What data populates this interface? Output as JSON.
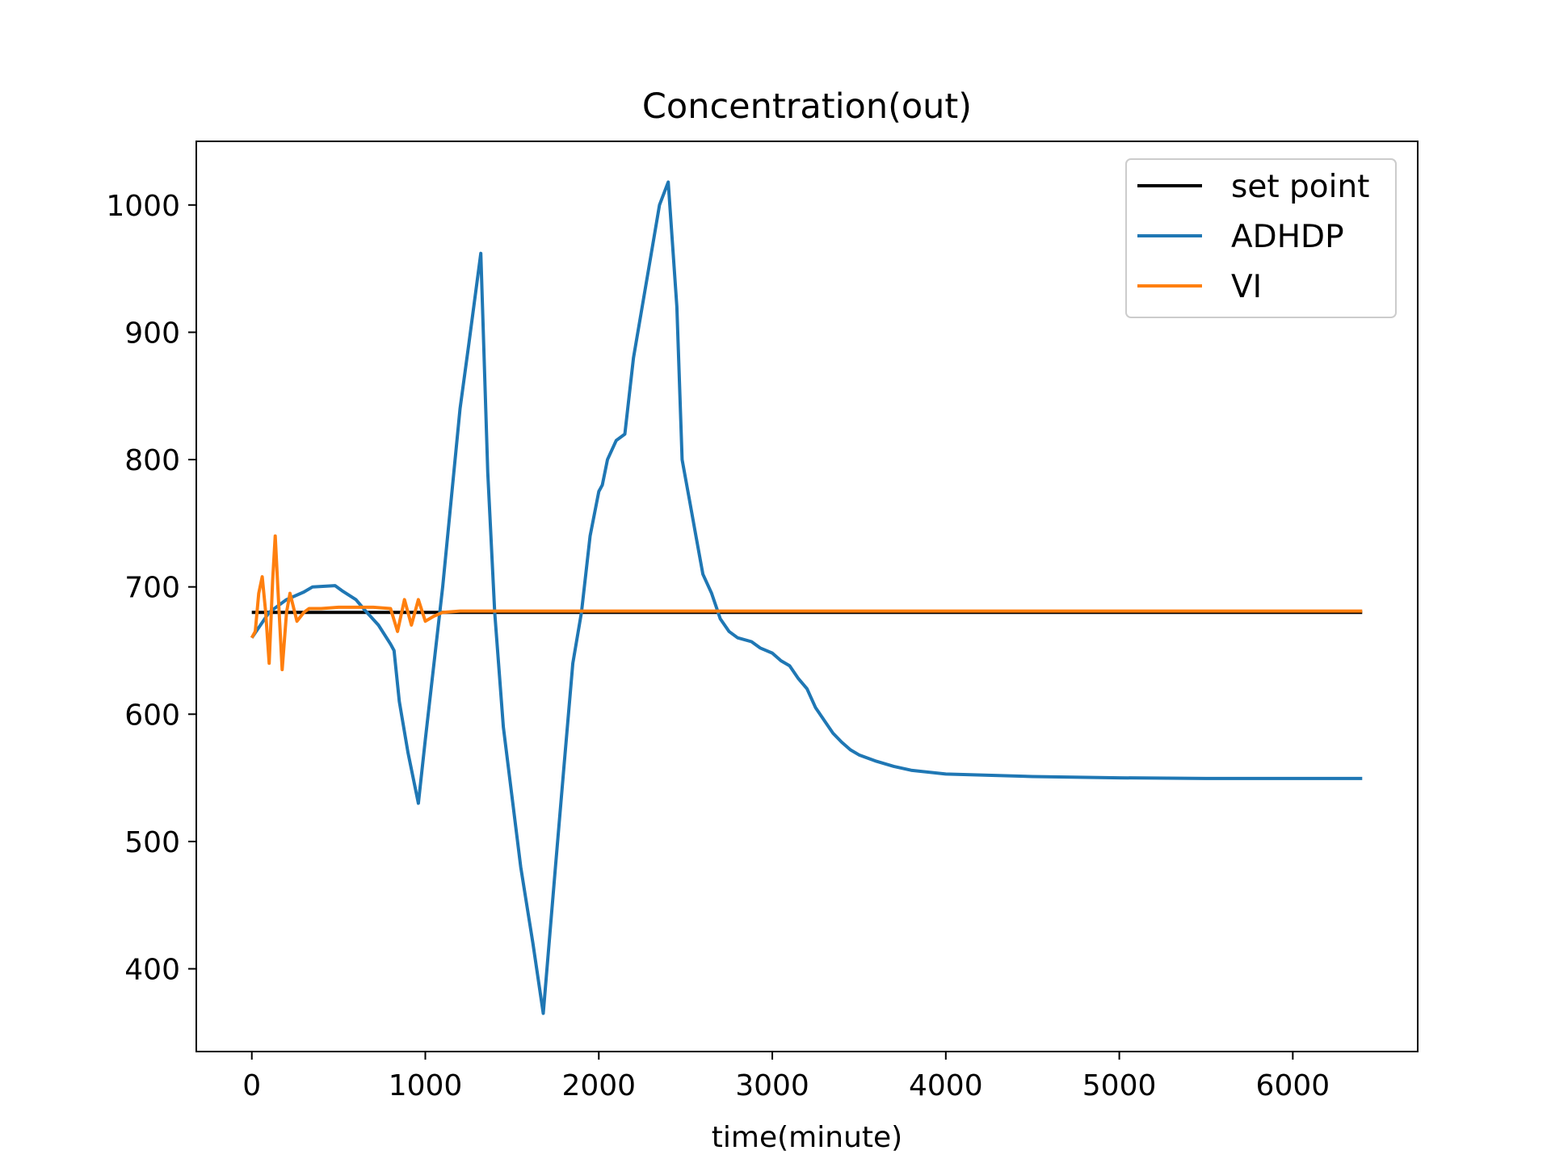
{
  "chart_data": {
    "type": "line",
    "title": "Concentration(out)",
    "xlabel": "time(minute)",
    "ylabel": "",
    "xlim": [
      -320,
      6720
    ],
    "ylim": [
      335,
      1050
    ],
    "x_ticks": [
      0,
      1000,
      2000,
      3000,
      4000,
      5000,
      6000
    ],
    "y_ticks": [
      400,
      500,
      600,
      700,
      800,
      900,
      1000
    ],
    "grid": false,
    "legend_position": "top-right",
    "series": [
      {
        "name": "set point",
        "color": "#000000",
        "points": [
          [
            0,
            680
          ],
          [
            6400,
            680
          ]
        ]
      },
      {
        "name": "ADHDP",
        "color": "#1f77b4",
        "points": [
          [
            0,
            660
          ],
          [
            100,
            680
          ],
          [
            200,
            690
          ],
          [
            300,
            696
          ],
          [
            350,
            700
          ],
          [
            480,
            701
          ],
          [
            520,
            697
          ],
          [
            600,
            690
          ],
          [
            650,
            682
          ],
          [
            730,
            670
          ],
          [
            800,
            655
          ],
          [
            820,
            650
          ],
          [
            850,
            610
          ],
          [
            900,
            570
          ],
          [
            960,
            530
          ],
          [
            1000,
            580
          ],
          [
            1100,
            700
          ],
          [
            1200,
            840
          ],
          [
            1250,
            890
          ],
          [
            1320,
            962
          ],
          [
            1360,
            790
          ],
          [
            1400,
            680
          ],
          [
            1450,
            590
          ],
          [
            1550,
            480
          ],
          [
            1620,
            420
          ],
          [
            1680,
            365
          ],
          [
            1750,
            480
          ],
          [
            1800,
            560
          ],
          [
            1850,
            640
          ],
          [
            1900,
            680
          ],
          [
            1950,
            740
          ],
          [
            2000,
            775
          ],
          [
            2020,
            780
          ],
          [
            2050,
            800
          ],
          [
            2100,
            815
          ],
          [
            2150,
            820
          ],
          [
            2200,
            880
          ],
          [
            2300,
            960
          ],
          [
            2350,
            1000
          ],
          [
            2400,
            1018
          ],
          [
            2450,
            920
          ],
          [
            2480,
            800
          ],
          [
            2520,
            770
          ],
          [
            2560,
            740
          ],
          [
            2600,
            710
          ],
          [
            2650,
            695
          ],
          [
            2700,
            675
          ],
          [
            2750,
            665
          ],
          [
            2800,
            660
          ],
          [
            2880,
            657
          ],
          [
            2930,
            652
          ],
          [
            3000,
            648
          ],
          [
            3050,
            642
          ],
          [
            3100,
            638
          ],
          [
            3150,
            628
          ],
          [
            3200,
            620
          ],
          [
            3250,
            605
          ],
          [
            3300,
            595
          ],
          [
            3350,
            585
          ],
          [
            3400,
            578
          ],
          [
            3450,
            572
          ],
          [
            3500,
            568
          ],
          [
            3600,
            563
          ],
          [
            3700,
            559
          ],
          [
            3800,
            556
          ],
          [
            4000,
            553
          ],
          [
            4500,
            551
          ],
          [
            5000,
            550
          ],
          [
            5500,
            549.5
          ],
          [
            6000,
            549.5
          ],
          [
            6400,
            549.5
          ]
        ]
      },
      {
        "name": "VI",
        "color": "#ff7f0e",
        "points": [
          [
            0,
            660
          ],
          [
            20,
            665
          ],
          [
            40,
            695
          ],
          [
            60,
            708
          ],
          [
            80,
            680
          ],
          [
            100,
            640
          ],
          [
            120,
            705
          ],
          [
            135,
            740
          ],
          [
            150,
            700
          ],
          [
            175,
            635
          ],
          [
            200,
            680
          ],
          [
            220,
            695
          ],
          [
            260,
            673
          ],
          [
            300,
            680
          ],
          [
            330,
            683
          ],
          [
            400,
            683
          ],
          [
            500,
            684
          ],
          [
            600,
            684
          ],
          [
            700,
            684
          ],
          [
            800,
            683
          ],
          [
            840,
            665
          ],
          [
            880,
            690
          ],
          [
            920,
            670
          ],
          [
            960,
            690
          ],
          [
            1000,
            673
          ],
          [
            1050,
            677
          ],
          [
            1100,
            680
          ],
          [
            1200,
            681
          ],
          [
            1500,
            681
          ],
          [
            2000,
            681
          ],
          [
            3000,
            681
          ],
          [
            4000,
            681
          ],
          [
            5000,
            681
          ],
          [
            6000,
            681
          ],
          [
            6400,
            681
          ]
        ]
      }
    ]
  }
}
